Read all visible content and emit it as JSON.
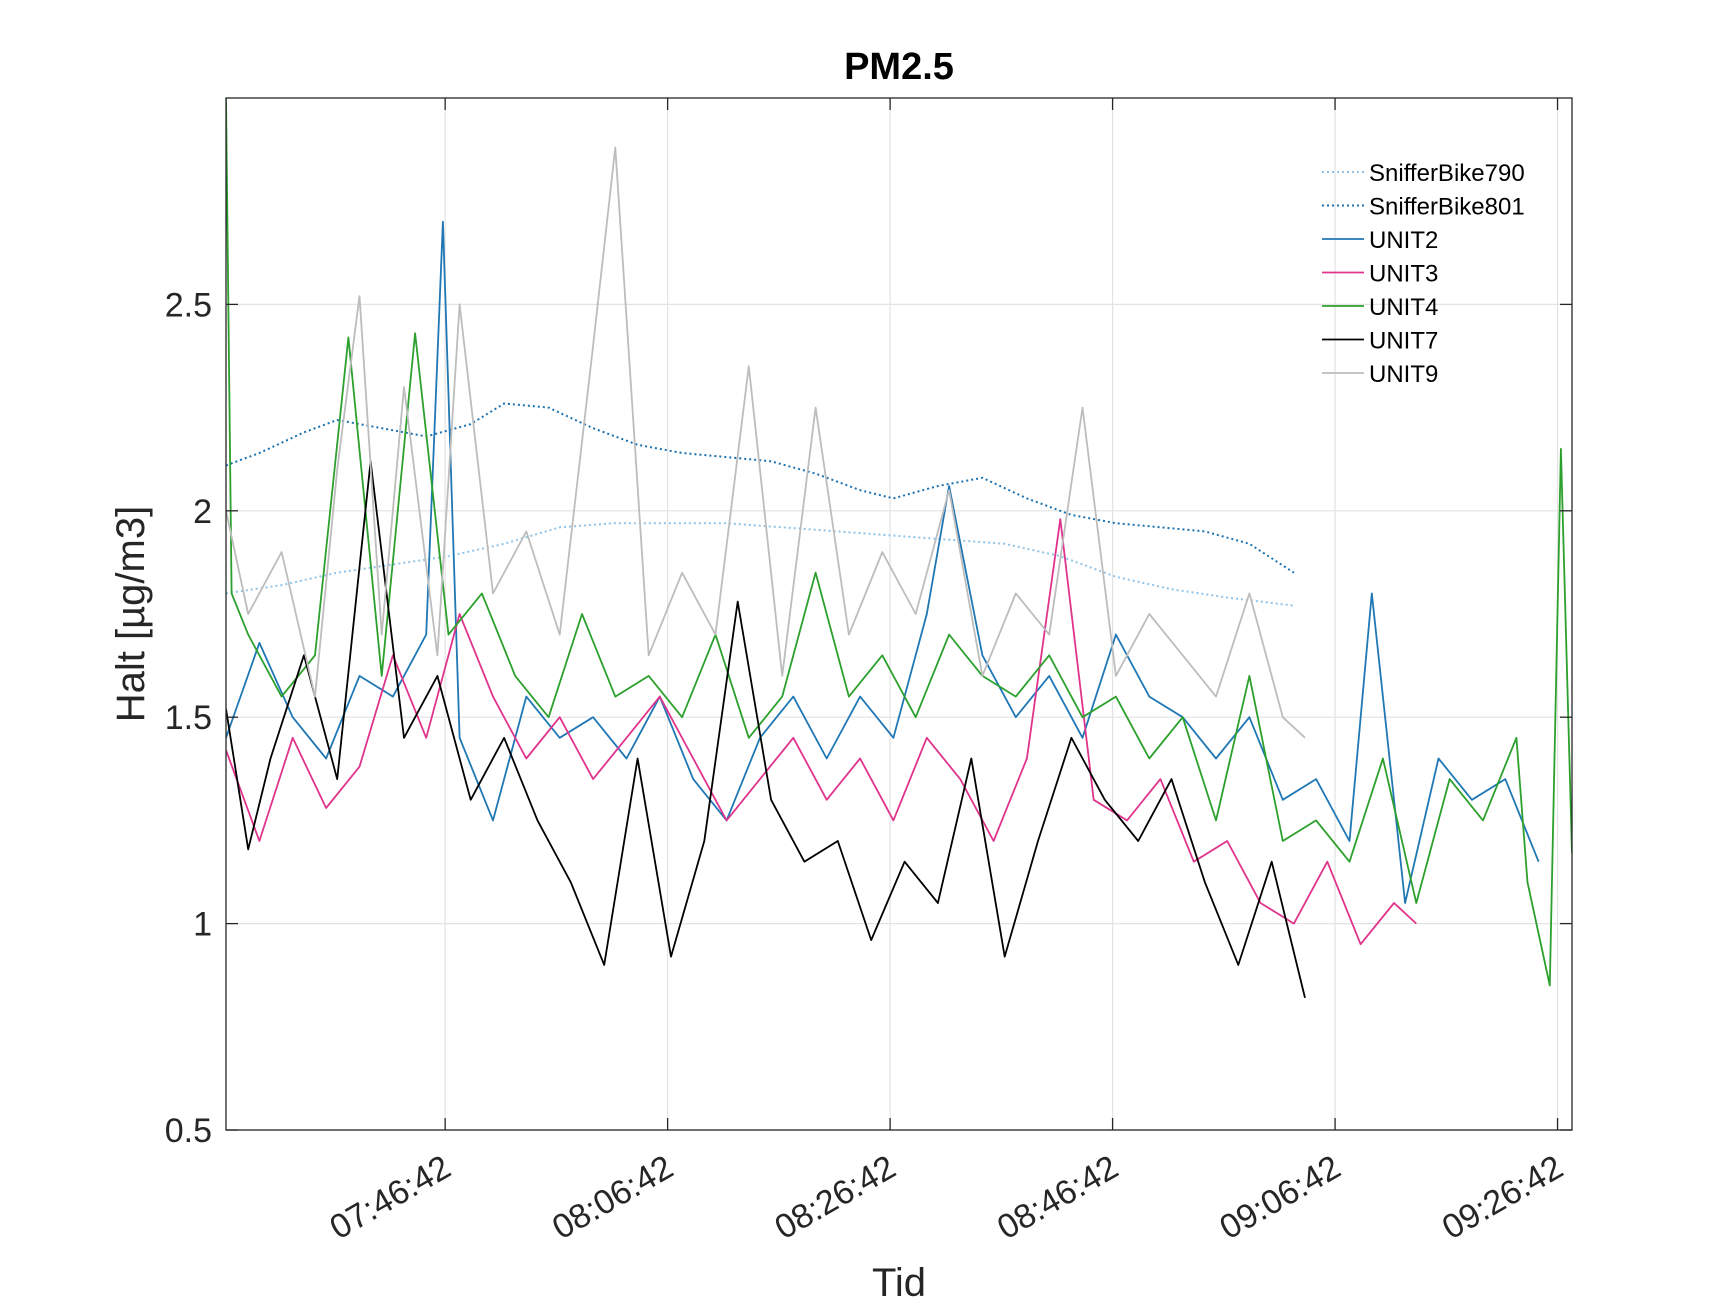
{
  "chart_data": {
    "type": "line",
    "title": "PM2.5",
    "xlabel": "Tid",
    "ylabel": "Halt [µg/m3]",
    "x_unit": "time (HH:MM:SS)",
    "xlim": [
      "07:27:00",
      "09:28:00"
    ],
    "ylim": [
      0.5,
      3.0
    ],
    "x_ticks": [
      "07:46:42",
      "08:06:42",
      "08:26:42",
      "08:46:42",
      "09:06:42",
      "09:26:42"
    ],
    "y_ticks": [
      0.5,
      1,
      1.5,
      2,
      2.5
    ],
    "grid": true,
    "legend_position": "top-right",
    "series": [
      {
        "name": "SnifferBike790",
        "color": "#8fc4e8",
        "style": "dotted",
        "x": [
          "07:27:00",
          "07:32:00",
          "07:37:00",
          "07:42:00",
          "07:47:00",
          "07:52:00",
          "07:57:00",
          "08:02:00",
          "08:07:00",
          "08:12:00",
          "08:17:00",
          "08:22:00",
          "08:27:00",
          "08:32:00",
          "08:37:00",
          "08:42:00",
          "08:47:00",
          "08:52:00",
          "08:57:00",
          "09:03:00"
        ],
        "y": [
          1.8,
          1.82,
          1.85,
          1.87,
          1.89,
          1.92,
          1.96,
          1.97,
          1.97,
          1.97,
          1.96,
          1.95,
          1.94,
          1.93,
          1.92,
          1.89,
          1.84,
          1.81,
          1.79,
          1.77
        ]
      },
      {
        "name": "SnifferBike801",
        "color": "#1a72b0",
        "style": "dotted",
        "x": [
          "07:27:00",
          "07:30:00",
          "07:34:00",
          "07:37:00",
          "07:41:00",
          "07:45:00",
          "07:49:00",
          "07:52:00",
          "07:56:00",
          "08:00:00",
          "08:04:00",
          "08:08:00",
          "08:12:00",
          "08:16:00",
          "08:20:00",
          "08:24:00",
          "08:27:00",
          "08:31:00",
          "08:35:00",
          "08:39:00",
          "08:43:00",
          "08:47:00",
          "08:51:00",
          "08:55:00",
          "08:59:00",
          "09:03:00"
        ],
        "y": [
          2.11,
          2.14,
          2.19,
          2.22,
          2.2,
          2.18,
          2.21,
          2.26,
          2.25,
          2.2,
          2.16,
          2.14,
          2.13,
          2.12,
          2.09,
          2.05,
          2.03,
          2.06,
          2.08,
          2.03,
          1.99,
          1.97,
          1.96,
          1.95,
          1.92,
          1.85
        ]
      },
      {
        "name": "UNIT2",
        "color": "#1f77b4",
        "style": "solid",
        "x": [
          "07:27:00",
          "07:30:00",
          "07:33:00",
          "07:36:00",
          "07:39:00",
          "07:42:00",
          "07:45:00",
          "07:46:30",
          "07:48:00",
          "07:51:00",
          "07:54:00",
          "07:57:00",
          "08:00:00",
          "08:03:00",
          "08:06:00",
          "08:09:00",
          "08:12:00",
          "08:15:00",
          "08:18:00",
          "08:21:00",
          "08:24:00",
          "08:27:00",
          "08:30:00",
          "08:32:00",
          "08:35:00",
          "08:38:00",
          "08:41:00",
          "08:44:00",
          "08:47:00",
          "08:50:00",
          "08:53:00",
          "08:56:00",
          "08:59:00",
          "09:02:00",
          "09:05:00",
          "09:08:00",
          "09:10:00",
          "09:13:00",
          "09:16:00",
          "09:19:00",
          "09:22:00",
          "09:25:00"
        ],
        "y": [
          1.45,
          1.68,
          1.5,
          1.4,
          1.6,
          1.55,
          1.7,
          2.7,
          1.45,
          1.25,
          1.55,
          1.45,
          1.5,
          1.4,
          1.55,
          1.35,
          1.25,
          1.45,
          1.55,
          1.4,
          1.55,
          1.45,
          1.75,
          2.06,
          1.65,
          1.5,
          1.6,
          1.45,
          1.7,
          1.55,
          1.5,
          1.4,
          1.5,
          1.3,
          1.35,
          1.2,
          1.8,
          1.05,
          1.4,
          1.3,
          1.35,
          1.15
        ]
      },
      {
        "name": "UNIT3",
        "color": "#e0338c",
        "style": "solid",
        "x": [
          "07:27:00",
          "07:30:00",
          "07:33:00",
          "07:36:00",
          "07:39:00",
          "07:42:00",
          "07:45:00",
          "07:48:00",
          "07:51:00",
          "07:54:00",
          "07:57:00",
          "08:00:00",
          "08:03:00",
          "08:06:00",
          "08:09:00",
          "08:12:00",
          "08:15:00",
          "08:18:00",
          "08:21:00",
          "08:24:00",
          "08:27:00",
          "08:30:00",
          "08:33:00",
          "08:36:00",
          "08:39:00",
          "08:42:00",
          "08:45:00",
          "08:48:00",
          "08:51:00",
          "08:54:00",
          "08:57:00",
          "09:00:00",
          "09:03:00",
          "09:06:00",
          "09:09:00",
          "09:12:00",
          "09:14:00"
        ],
        "y": [
          1.42,
          1.2,
          1.45,
          1.28,
          1.38,
          1.65,
          1.45,
          1.75,
          1.55,
          1.4,
          1.5,
          1.35,
          1.45,
          1.55,
          1.4,
          1.25,
          1.35,
          1.45,
          1.3,
          1.4,
          1.25,
          1.45,
          1.35,
          1.2,
          1.4,
          1.98,
          1.3,
          1.25,
          1.35,
          1.15,
          1.2,
          1.05,
          1.0,
          1.15,
          0.95,
          1.05,
          1.0
        ]
      },
      {
        "name": "UNIT4",
        "color": "#2ca02c",
        "style": "solid",
        "x": [
          "07:27:00",
          "07:27:30",
          "07:29:00",
          "07:32:00",
          "07:35:00",
          "07:38:00",
          "07:41:00",
          "07:44:00",
          "07:47:00",
          "07:50:00",
          "07:53:00",
          "07:56:00",
          "07:59:00",
          "08:02:00",
          "08:05:00",
          "08:08:00",
          "08:11:00",
          "08:14:00",
          "08:17:00",
          "08:20:00",
          "08:23:00",
          "08:26:00",
          "08:29:00",
          "08:32:00",
          "08:35:00",
          "08:38:00",
          "08:41:00",
          "08:44:00",
          "08:47:00",
          "08:50:00",
          "08:53:00",
          "08:56:00",
          "08:59:00",
          "09:02:00",
          "09:05:00",
          "09:08:00",
          "09:11:00",
          "09:14:00",
          "09:17:00",
          "09:20:00",
          "09:23:00",
          "09:24:00",
          "09:26:00",
          "09:27:00",
          "09:28:00"
        ],
        "y": [
          3.0,
          1.8,
          1.7,
          1.55,
          1.65,
          2.42,
          1.6,
          2.43,
          1.7,
          1.8,
          1.6,
          1.5,
          1.75,
          1.55,
          1.6,
          1.5,
          1.7,
          1.45,
          1.55,
          1.85,
          1.55,
          1.65,
          1.5,
          1.7,
          1.6,
          1.55,
          1.65,
          1.5,
          1.55,
          1.4,
          1.5,
          1.25,
          1.6,
          1.2,
          1.25,
          1.15,
          1.4,
          1.05,
          1.35,
          1.25,
          1.45,
          1.1,
          0.85,
          2.15,
          1.17
        ]
      },
      {
        "name": "UNIT7",
        "color": "#000000",
        "style": "solid",
        "x": [
          "07:27:00",
          "07:29:00",
          "07:31:00",
          "07:34:00",
          "07:37:00",
          "07:40:00",
          "07:43:00",
          "07:46:00",
          "07:49:00",
          "07:52:00",
          "07:55:00",
          "07:58:00",
          "08:01:00",
          "08:04:00",
          "08:07:00",
          "08:10:00",
          "08:13:00",
          "08:16:00",
          "08:19:00",
          "08:22:00",
          "08:25:00",
          "08:28:00",
          "08:31:00",
          "08:34:00",
          "08:37:00",
          "08:40:00",
          "08:43:00",
          "08:46:00",
          "08:49:00",
          "08:52:00",
          "08:55:00",
          "08:58:00",
          "09:01:00",
          "09:04:00"
        ],
        "y": [
          1.52,
          1.18,
          1.4,
          1.65,
          1.35,
          2.12,
          1.45,
          1.6,
          1.3,
          1.45,
          1.25,
          1.1,
          0.9,
          1.4,
          0.92,
          1.2,
          1.78,
          1.3,
          1.15,
          1.2,
          0.96,
          1.15,
          1.05,
          1.4,
          0.92,
          1.2,
          1.45,
          1.3,
          1.2,
          1.35,
          1.1,
          0.9,
          1.15,
          0.82
        ]
      },
      {
        "name": "UNIT9",
        "color": "#bdbdbd",
        "style": "solid",
        "x": [
          "07:27:00",
          "07:29:00",
          "07:32:00",
          "07:35:00",
          "07:37:00",
          "07:39:00",
          "07:41:00",
          "07:43:00",
          "07:46:00",
          "07:48:00",
          "07:51:00",
          "07:54:00",
          "07:57:00",
          "08:00:00",
          "08:02:00",
          "08:05:00",
          "08:08:00",
          "08:11:00",
          "08:14:00",
          "08:17:00",
          "08:20:00",
          "08:23:00",
          "08:26:00",
          "08:29:00",
          "08:32:00",
          "08:35:00",
          "08:38:00",
          "08:41:00",
          "08:44:00",
          "08:47:00",
          "08:50:00",
          "08:53:00",
          "08:56:00",
          "08:59:00",
          "09:02:00",
          "09:04:00"
        ],
        "y": [
          2.0,
          1.75,
          1.9,
          1.55,
          2.1,
          2.52,
          1.7,
          2.3,
          1.65,
          2.5,
          1.8,
          1.95,
          1.7,
          2.4,
          2.88,
          1.65,
          1.85,
          1.7,
          2.35,
          1.6,
          2.25,
          1.7,
          1.9,
          1.75,
          2.05,
          1.6,
          1.8,
          1.7,
          2.25,
          1.6,
          1.75,
          1.65,
          1.55,
          1.8,
          1.5,
          1.45
        ]
      }
    ]
  }
}
